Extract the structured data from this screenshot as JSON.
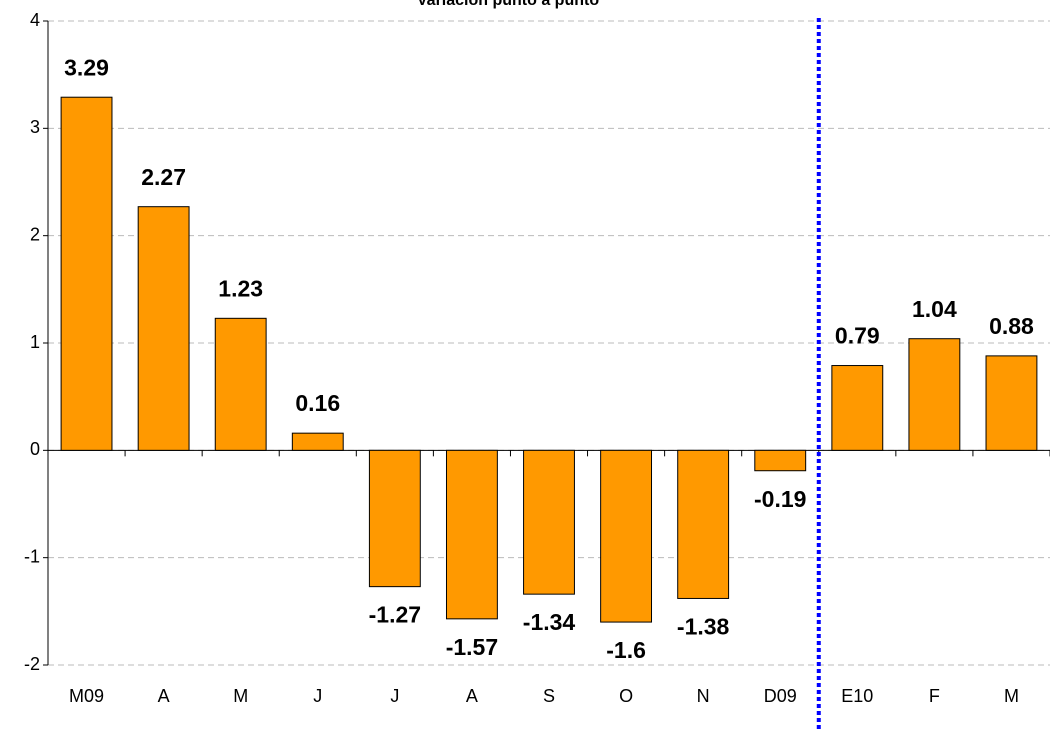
{
  "chart_data": {
    "type": "bar",
    "title": "Variación punto a punto",
    "categories": [
      "M09",
      "A",
      "M",
      "J",
      "J",
      "A",
      "S",
      "O",
      "N",
      "D09",
      "E10",
      "F",
      "M"
    ],
    "values": [
      3.29,
      2.27,
      1.23,
      0.16,
      -1.27,
      -1.57,
      -1.34,
      -1.6,
      -1.38,
      -0.19,
      0.79,
      1.04,
      0.88
    ],
    "color": "#ff9900",
    "ylim": [
      -2,
      4
    ],
    "yticks": [
      -2,
      -1,
      0,
      1,
      2,
      3,
      4
    ],
    "grid": true
  }
}
